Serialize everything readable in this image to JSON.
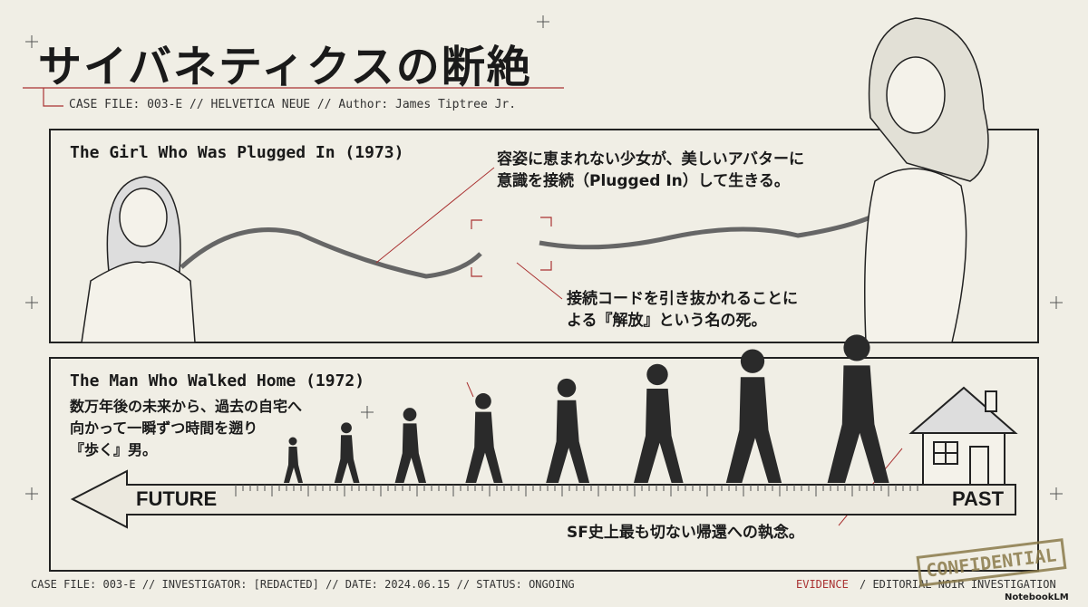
{
  "header": {
    "title": "サイバネティクスの断絶",
    "subtitle": "CASE FILE: 003-E // HELVETICA NEUE // Author: James Tiptree Jr."
  },
  "panels": [
    {
      "title": "The Girl Who Was Plugged In (1973)",
      "annotations": [
        {
          "lines": [
            "容姿に恵まれない少女が、美しいアバターに",
            "意識を接続（Plugged In）して生きる。"
          ]
        },
        {
          "lines": [
            "接続コードを引き抜かれることに",
            "よる『解放』という名の死。"
          ]
        }
      ]
    },
    {
      "title": "The Man Who Walked Home (1972)",
      "description": [
        "数万年後の未来から、過去の自宅へ",
        "向かって一瞬ずつ時間を遡り",
        "『歩く』男。"
      ],
      "arrow_start": "FUTURE",
      "arrow_end": "PAST",
      "annotation": "SF史上最も切ない帰還への執念。"
    }
  ],
  "footer": {
    "left": "CASE FILE: 003-E // INVESTIGATOR: [REDACTED] // DATE: 2024.06.15 // STATUS: ONGOING",
    "evidence": "EVIDENCE",
    "right": "/ EDITORIAL NOIR INVESTIGATION",
    "stamp": "CONFIDENTIAL",
    "brand": "NotebookLM"
  }
}
